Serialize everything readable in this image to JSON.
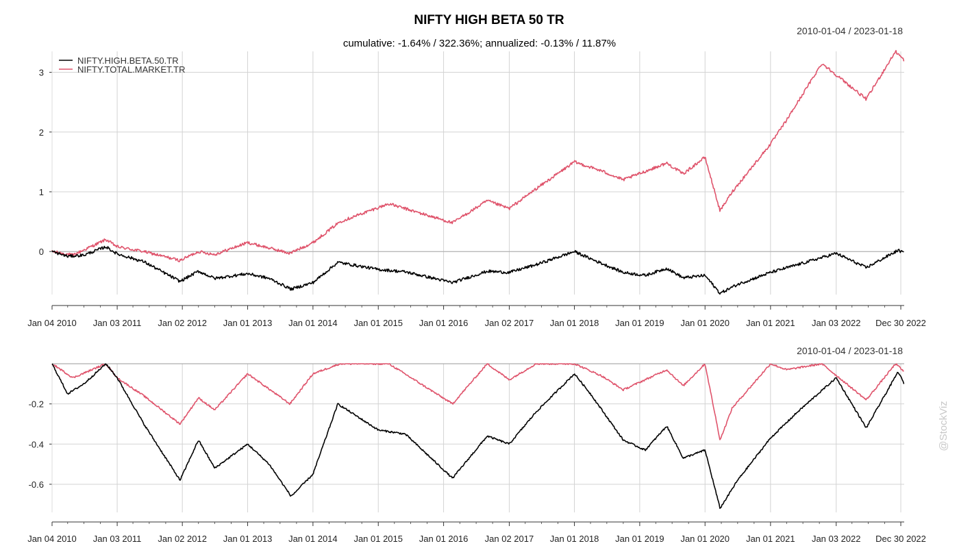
{
  "title": "NIFTY HIGH BETA 50 TR",
  "subtitle": "cumulative: -1.64% / 322.36%; annualized: -0.13% / 11.87%",
  "date_range_top": "2010-01-04 / 2023-01-18",
  "date_range_bottom": "2010-01-04 / 2023-01-18",
  "watermark": "@StockViz",
  "colors": {
    "series1": "#000000",
    "series2": "#DF536B",
    "grid": "#d3d3d3",
    "zero": "#aaaaaa"
  },
  "x_tick_labels": [
    "Jan 04 2010",
    "Jan 03 2011",
    "Jan 02 2012",
    "Jan 01 2013",
    "Jan 01 2014",
    "Jan 01 2015",
    "Jan 01 2016",
    "Jan 02 2017",
    "Jan 01 2018",
    "Jan 01 2019",
    "Jan 01 2020",
    "Jan 01 2021",
    "Jan 03 2022",
    "Dec 30 2022"
  ],
  "chart_data": [
    {
      "type": "line",
      "panel": "cumulative returns",
      "x_range": [
        "2010-01-04",
        "2023-01-18"
      ],
      "ylim": [
        -0.72,
        3.35
      ],
      "y_ticks": [
        0,
        1,
        2,
        3
      ],
      "y_tick_labels": [
        "0",
        "1",
        "2",
        "3"
      ],
      "grid": true,
      "legend": "top-left",
      "series": [
        {
          "name": "NIFTY.HIGH.BETA.50.TR",
          "color": "#000000",
          "points": [
            [
              "2010-01-04",
              0.0
            ],
            [
              "2010-04-01",
              -0.08
            ],
            [
              "2010-07-01",
              -0.06
            ],
            [
              "2010-11-01",
              0.08
            ],
            [
              "2011-01-03",
              -0.04
            ],
            [
              "2011-06-01",
              -0.17
            ],
            [
              "2011-12-20",
              -0.5
            ],
            [
              "2012-04-01",
              -0.33
            ],
            [
              "2012-07-01",
              -0.45
            ],
            [
              "2013-01-01",
              -0.37
            ],
            [
              "2013-05-01",
              -0.45
            ],
            [
              "2013-09-01",
              -0.63
            ],
            [
              "2014-01-01",
              -0.52
            ],
            [
              "2014-05-20",
              -0.18
            ],
            [
              "2015-01-01",
              -0.3
            ],
            [
              "2015-06-01",
              -0.34
            ],
            [
              "2016-02-20",
              -0.52
            ],
            [
              "2016-09-01",
              -0.33
            ],
            [
              "2017-01-02",
              -0.35
            ],
            [
              "2017-06-01",
              -0.22
            ],
            [
              "2018-01-01",
              0.0
            ],
            [
              "2018-04-01",
              -0.12
            ],
            [
              "2018-10-01",
              -0.35
            ],
            [
              "2019-02-01",
              -0.4
            ],
            [
              "2019-06-01",
              -0.28
            ],
            [
              "2019-09-01",
              -0.44
            ],
            [
              "2020-01-01",
              -0.4
            ],
            [
              "2020-03-25",
              -0.7
            ],
            [
              "2020-07-01",
              -0.55
            ],
            [
              "2021-01-01",
              -0.35
            ],
            [
              "2021-06-01",
              -0.22
            ],
            [
              "2022-01-03",
              -0.03
            ],
            [
              "2022-06-20",
              -0.27
            ],
            [
              "2022-12-15",
              0.02
            ],
            [
              "2023-01-18",
              -0.02
            ]
          ]
        },
        {
          "name": "NIFTY.TOTAL.MARKET.TR",
          "color": "#DF536B",
          "points": [
            [
              "2010-01-04",
              0.0
            ],
            [
              "2010-05-01",
              -0.06
            ],
            [
              "2010-11-01",
              0.2
            ],
            [
              "2011-01-03",
              0.08
            ],
            [
              "2011-06-01",
              0.0
            ],
            [
              "2011-12-20",
              -0.15
            ],
            [
              "2012-04-01",
              0.0
            ],
            [
              "2012-07-01",
              -0.05
            ],
            [
              "2013-01-01",
              0.15
            ],
            [
              "2013-08-25",
              -0.03
            ],
            [
              "2014-01-01",
              0.15
            ],
            [
              "2014-06-01",
              0.5
            ],
            [
              "2015-03-01",
              0.8
            ],
            [
              "2016-02-20",
              0.48
            ],
            [
              "2016-09-01",
              0.85
            ],
            [
              "2017-01-02",
              0.72
            ],
            [
              "2017-06-01",
              1.05
            ],
            [
              "2018-01-01",
              1.5
            ],
            [
              "2018-06-01",
              1.35
            ],
            [
              "2018-10-01",
              1.2
            ],
            [
              "2019-06-01",
              1.48
            ],
            [
              "2019-09-01",
              1.3
            ],
            [
              "2020-01-01",
              1.58
            ],
            [
              "2020-03-25",
              0.68
            ],
            [
              "2020-06-01",
              1.0
            ],
            [
              "2021-01-01",
              1.8
            ],
            [
              "2021-04-01",
              2.2
            ],
            [
              "2021-10-15",
              3.15
            ],
            [
              "2022-06-20",
              2.55
            ],
            [
              "2022-12-01",
              3.35
            ],
            [
              "2023-01-18",
              3.2
            ]
          ]
        }
      ]
    },
    {
      "type": "line",
      "panel": "drawdowns",
      "x_range": [
        "2010-01-04",
        "2023-01-18"
      ],
      "ylim": [
        -0.74,
        0.0
      ],
      "y_ticks": [
        -0.2,
        -0.4,
        -0.6
      ],
      "y_tick_labels": [
        "-0.2",
        "-0.4",
        "-0.6"
      ],
      "grid": true,
      "series": [
        {
          "name": "NIFTY.HIGH.BETA.50.TR",
          "color": "#000000",
          "points": [
            [
              "2010-01-04",
              0.0
            ],
            [
              "2010-04-01",
              -0.15
            ],
            [
              "2010-07-01",
              -0.1
            ],
            [
              "2010-11-01",
              0.0
            ],
            [
              "2011-01-03",
              -0.07
            ],
            [
              "2011-06-01",
              -0.3
            ],
            [
              "2011-12-20",
              -0.58
            ],
            [
              "2012-04-01",
              -0.38
            ],
            [
              "2012-07-01",
              -0.52
            ],
            [
              "2013-01-01",
              -0.4
            ],
            [
              "2013-05-01",
              -0.5
            ],
            [
              "2013-09-01",
              -0.66
            ],
            [
              "2014-01-01",
              -0.55
            ],
            [
              "2014-05-20",
              -0.2
            ],
            [
              "2015-01-01",
              -0.33
            ],
            [
              "2015-06-01",
              -0.35
            ],
            [
              "2016-02-20",
              -0.57
            ],
            [
              "2016-09-01",
              -0.36
            ],
            [
              "2017-01-02",
              -0.4
            ],
            [
              "2017-06-01",
              -0.24
            ],
            [
              "2018-01-01",
              -0.05
            ],
            [
              "2018-04-01",
              -0.15
            ],
            [
              "2018-10-01",
              -0.38
            ],
            [
              "2019-02-01",
              -0.43
            ],
            [
              "2019-06-01",
              -0.31
            ],
            [
              "2019-09-01",
              -0.47
            ],
            [
              "2020-01-01",
              -0.43
            ],
            [
              "2020-03-25",
              -0.72
            ],
            [
              "2020-07-01",
              -0.58
            ],
            [
              "2021-01-01",
              -0.37
            ],
            [
              "2021-06-01",
              -0.24
            ],
            [
              "2022-01-03",
              -0.07
            ],
            [
              "2022-06-20",
              -0.32
            ],
            [
              "2022-12-15",
              -0.04
            ],
            [
              "2023-01-18",
              -0.1
            ]
          ]
        },
        {
          "name": "NIFTY.TOTAL.MARKET.TR",
          "color": "#DF536B",
          "points": [
            [
              "2010-01-04",
              0.0
            ],
            [
              "2010-05-01",
              -0.07
            ],
            [
              "2010-11-01",
              0.0
            ],
            [
              "2011-01-03",
              -0.07
            ],
            [
              "2011-06-01",
              -0.16
            ],
            [
              "2011-12-20",
              -0.3
            ],
            [
              "2012-04-01",
              -0.17
            ],
            [
              "2012-07-01",
              -0.23
            ],
            [
              "2013-01-01",
              -0.05
            ],
            [
              "2013-08-25",
              -0.2
            ],
            [
              "2014-01-01",
              -0.05
            ],
            [
              "2014-06-01",
              0.0
            ],
            [
              "2015-03-01",
              0.0
            ],
            [
              "2016-02-20",
              -0.2
            ],
            [
              "2016-09-01",
              0.0
            ],
            [
              "2017-01-02",
              -0.08
            ],
            [
              "2017-06-01",
              0.0
            ],
            [
              "2018-01-01",
              0.0
            ],
            [
              "2018-06-01",
              -0.06
            ],
            [
              "2018-10-01",
              -0.13
            ],
            [
              "2019-06-01",
              -0.03
            ],
            [
              "2019-09-01",
              -0.11
            ],
            [
              "2020-01-01",
              0.0
            ],
            [
              "2020-03-25",
              -0.38
            ],
            [
              "2020-06-01",
              -0.22
            ],
            [
              "2021-01-01",
              0.0
            ],
            [
              "2021-04-01",
              -0.03
            ],
            [
              "2021-10-15",
              0.0
            ],
            [
              "2022-06-20",
              -0.18
            ],
            [
              "2022-12-01",
              0.0
            ],
            [
              "2023-01-18",
              -0.04
            ]
          ]
        }
      ]
    }
  ]
}
